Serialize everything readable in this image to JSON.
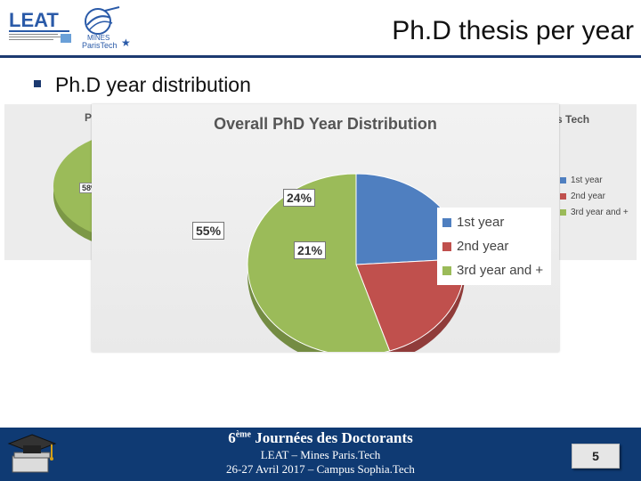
{
  "slide": {
    "title": "Ph.D thesis per year",
    "bullet": "Ph.D year distribution"
  },
  "logos": {
    "leat_text": "LEAT",
    "mines_text_1": "MINES",
    "mines_text_2": "ParisTech"
  },
  "background_chart": {
    "title_fragment_left": "P",
    "title_fragment_right": "s Tech",
    "visible_label": "58%",
    "legend": [
      "1st year",
      "2nd year",
      "3rd year and +"
    ]
  },
  "chart_data": {
    "type": "pie",
    "title": "Overall PhD Year Distribution",
    "categories": [
      "1st year",
      "2nd year",
      "3rd year and +"
    ],
    "values": [
      24,
      21,
      55
    ],
    "labels": [
      "24%",
      "21%",
      "55%"
    ],
    "colors": [
      "#4f7fc0",
      "#c0504d",
      "#9bbb59"
    ],
    "legend_position": "right"
  },
  "footer": {
    "heading_number": "6",
    "heading_sup": "ème",
    "heading_rest": " Journées des Doctorants",
    "line1": "LEAT – Mines Paris.Tech",
    "line2": "26-27 Avril 2017 – Campus Sophia.Tech",
    "page_number": "5"
  }
}
